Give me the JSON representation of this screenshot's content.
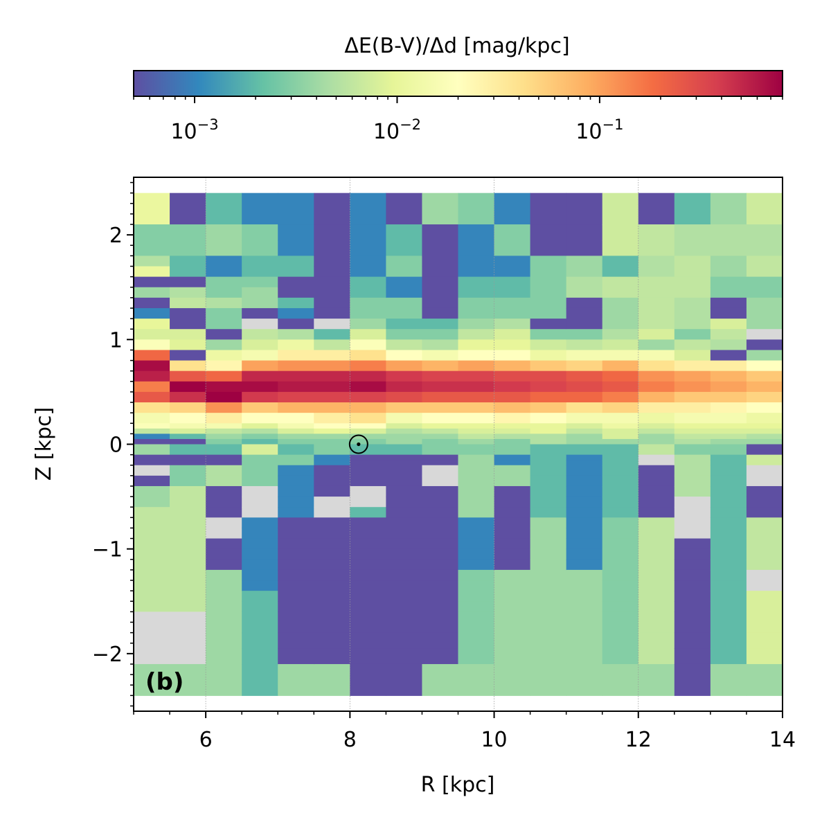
{
  "chart_data": {
    "type": "heatmap",
    "panel_label": "(b)",
    "xlabel": "R  [kpc]",
    "ylabel": "Z  [kpc]",
    "xlim": [
      5,
      14
    ],
    "ylim": [
      -2.55,
      2.55
    ],
    "xticks": [
      6,
      8,
      10,
      12,
      14
    ],
    "xtick_labels": [
      "6",
      "8",
      "10",
      "12",
      "14"
    ],
    "yticks": [
      -2,
      -1,
      0,
      1,
      2
    ],
    "ytick_labels": [
      "−2",
      "−1",
      "0",
      "1",
      "2"
    ],
    "grid": "dotted vertical at major x ticks",
    "colorbar": {
      "label": "ΔE(B-V)/Δd  [mag/kpc]",
      "scale": "log",
      "vmin": 0.0005,
      "vmax": 0.8,
      "colormap": "Spectral_r",
      "tick_values": [
        0.001,
        0.01,
        0.1
      ],
      "tick_bases": [
        "10",
        "10",
        "10"
      ],
      "tick_exponents": [
        "−3",
        "−2",
        "−1"
      ],
      "nan_color": "#d8d8d8"
    },
    "sun_marker": {
      "R": 8.12,
      "Z": 0.0,
      "symbol": "⊙"
    },
    "r_bins": [
      5.0,
      5.5,
      6.0,
      6.5,
      7.0,
      7.5,
      8.0,
      8.5,
      9.0,
      9.5,
      10.0,
      10.5,
      11.0,
      11.5,
      12.0,
      12.5,
      13.0,
      13.5,
      14.0
    ],
    "z_edges": [
      2.4,
      2.1,
      1.95,
      1.8,
      1.7,
      1.6,
      1.5,
      1.4,
      1.3,
      1.2,
      1.1,
      1.0,
      0.9,
      0.8,
      0.7,
      0.6,
      0.5,
      0.4,
      0.3,
      0.2,
      0.15,
      0.1,
      0.05,
      0.0,
      -0.05,
      -0.1,
      -0.15,
      -0.2,
      -0.3,
      -0.4,
      -0.5,
      -0.6,
      -0.7,
      -0.8,
      -0.9,
      -1.0,
      -1.1,
      -1.2,
      -1.3,
      -1.4,
      -1.5,
      -1.6,
      -1.8,
      -1.95,
      -2.1,
      -2.4
    ],
    "value_columns": [
      [
        0.011,
        0.003,
        0.003,
        0.005,
        0.011,
        0.0005,
        0.004,
        0.0005,
        0.001,
        0.01,
        0.008,
        0.018,
        0.2,
        0.7,
        0.55,
        0.15,
        0.25,
        0.04,
        0.015,
        0.018,
        0.006,
        0.001,
        0.0005,
        0.004,
        0.004,
        0.0005,
        0.0005,
        null,
        0.0005,
        0.004,
        0.004,
        0.006,
        0.006,
        0.006,
        0.006,
        0.006,
        0.006,
        0.006,
        0.006,
        0.006,
        0.006,
        null,
        null,
        null,
        0.004
      ],
      [
        0.0005,
        0.003,
        0.003,
        0.002,
        0.002,
        0.0005,
        0.005,
        0.006,
        0.0005,
        0.0005,
        0.008,
        0.009,
        0.0005,
        0.04,
        0.25,
        0.8,
        0.45,
        0.05,
        0.02,
        0.015,
        0.008,
        0.002,
        0.0005,
        0.002,
        0.002,
        0.0005,
        0.0005,
        0.003,
        0.003,
        0.006,
        0.006,
        0.006,
        0.006,
        0.006,
        0.006,
        0.006,
        0.006,
        0.006,
        0.006,
        0.006,
        0.006,
        null,
        null,
        null,
        0.004
      ],
      [
        0.002,
        0.004,
        0.004,
        0.001,
        0.001,
        0.003,
        0.003,
        0.005,
        0.003,
        0.003,
        0.0005,
        0.004,
        0.012,
        0.025,
        0.2,
        0.7,
        0.8,
        0.12,
        0.03,
        0.015,
        0.006,
        0.004,
        0.003,
        0.002,
        0.002,
        0.0005,
        0.0005,
        0.005,
        0.005,
        0.0005,
        0.0005,
        0.0005,
        null,
        null,
        0.0005,
        0.0005,
        0.0005,
        0.004,
        0.004,
        0.004,
        0.004,
        0.004,
        0.004,
        0.004,
        0.004
      ],
      [
        0.001,
        0.003,
        0.003,
        0.002,
        0.002,
        0.003,
        0.004,
        0.004,
        0.0005,
        null,
        0.006,
        0.008,
        0.015,
        0.1,
        0.5,
        0.7,
        0.4,
        0.06,
        0.02,
        0.009,
        0.005,
        0.003,
        0.002,
        0.008,
        0.008,
        0.003,
        0.003,
        0.003,
        0.003,
        null,
        null,
        null,
        0.001,
        0.001,
        0.001,
        0.001,
        0.001,
        0.001,
        0.001,
        0.002,
        0.002,
        0.002,
        0.002,
        0.002,
        0.002
      ],
      [
        0.001,
        0.001,
        0.001,
        0.002,
        0.002,
        0.0005,
        0.0005,
        0.002,
        0.001,
        0.0005,
        0.005,
        0.012,
        0.03,
        0.12,
        0.5,
        0.6,
        0.35,
        0.08,
        0.02,
        0.015,
        0.008,
        0.004,
        0.003,
        0.002,
        0.002,
        0.003,
        0.003,
        0.001,
        0.001,
        0.001,
        0.001,
        0.001,
        0.0005,
        0.0005,
        0.0005,
        0.0005,
        0.0005,
        0.0005,
        0.0005,
        0.0005,
        0.0005,
        0.0005,
        0.0005,
        0.0005,
        0.004
      ],
      [
        0.0005,
        0.0005,
        0.0005,
        0.0005,
        0.0005,
        0.0005,
        0.0005,
        0.0005,
        0.0005,
        null,
        0.002,
        0.006,
        0.03,
        0.12,
        0.5,
        0.6,
        0.35,
        0.08,
        0.03,
        0.02,
        0.01,
        0.004,
        0.003,
        0.003,
        0.003,
        0.001,
        0.001,
        0.0005,
        0.0005,
        0.0005,
        null,
        null,
        0.0005,
        0.0005,
        0.0005,
        0.0005,
        0.0005,
        0.0005,
        0.0005,
        0.0005,
        0.0005,
        0.0005,
        0.0005,
        0.0005,
        0.004
      ],
      [
        0.001,
        0.001,
        0.001,
        0.001,
        0.001,
        0.002,
        0.002,
        0.003,
        0.003,
        0.004,
        0.008,
        0.018,
        0.04,
        0.15,
        0.5,
        0.7,
        0.35,
        0.08,
        0.04,
        0.02,
        0.008,
        0.004,
        0.003,
        0.002,
        0.002,
        0.0005,
        0.0005,
        0.0005,
        0.0005,
        null,
        null,
        0.002,
        0.0005,
        0.0005,
        0.0005,
        0.0005,
        0.0005,
        0.0005,
        0.0005,
        0.0005,
        0.0005,
        0.0005,
        0.0005,
        0.0005,
        0.0005
      ],
      [
        0.0005,
        0.002,
        0.002,
        0.003,
        0.003,
        0.001,
        0.001,
        0.003,
        0.003,
        0.002,
        0.003,
        0.006,
        0.02,
        0.1,
        0.4,
        0.5,
        0.3,
        0.06,
        0.015,
        0.008,
        0.005,
        0.004,
        0.004,
        0.002,
        0.002,
        0.0005,
        0.0005,
        0.0005,
        0.0005,
        0.0005,
        0.0005,
        0.0005,
        0.0005,
        0.0005,
        0.0005,
        0.0005,
        0.0005,
        0.0005,
        0.0005,
        0.0005,
        0.0005,
        0.0005,
        0.0005,
        0.0005,
        0.0005
      ],
      [
        0.004,
        0.0005,
        0.0005,
        0.0005,
        0.0005,
        0.0005,
        0.0005,
        0.0005,
        0.0005,
        0.002,
        0.003,
        0.005,
        0.015,
        0.08,
        0.35,
        0.45,
        0.25,
        0.06,
        0.02,
        0.01,
        0.006,
        0.004,
        0.003,
        0.003,
        0.003,
        0.0005,
        0.0005,
        null,
        null,
        0.0005,
        0.0005,
        0.0005,
        0.0005,
        0.0005,
        0.0005,
        0.0005,
        0.0005,
        0.0005,
        0.0005,
        0.0005,
        0.0005,
        0.0005,
        0.0005,
        0.0005,
        0.004
      ],
      [
        0.003,
        0.001,
        0.001,
        0.001,
        0.001,
        0.002,
        0.002,
        0.003,
        0.003,
        0.004,
        0.006,
        0.01,
        0.02,
        0.1,
        0.35,
        0.45,
        0.25,
        0.06,
        0.02,
        0.01,
        0.008,
        0.006,
        0.004,
        0.003,
        0.003,
        0.004,
        0.004,
        0.004,
        0.004,
        0.004,
        0.004,
        0.004,
        0.001,
        0.001,
        0.001,
        0.001,
        0.001,
        0.003,
        0.003,
        0.003,
        0.003,
        0.003,
        0.003,
        0.003,
        0.004
      ],
      [
        0.001,
        0.003,
        0.003,
        0.001,
        0.001,
        0.002,
        0.002,
        0.003,
        0.003,
        0.005,
        0.008,
        0.01,
        0.02,
        0.08,
        0.3,
        0.4,
        0.25,
        0.07,
        0.025,
        0.01,
        0.008,
        0.005,
        0.003,
        0.003,
        0.003,
        0.001,
        0.001,
        0.004,
        0.004,
        0.0005,
        0.0005,
        0.0005,
        0.0005,
        0.0005,
        0.0005,
        0.0005,
        0.0005,
        0.004,
        0.004,
        0.004,
        0.004,
        0.004,
        0.004,
        0.004,
        0.004
      ],
      [
        0.0005,
        0.0005,
        0.0005,
        0.003,
        0.003,
        0.003,
        0.003,
        0.003,
        0.003,
        0.0005,
        0.003,
        0.007,
        0.012,
        0.06,
        0.3,
        0.35,
        0.2,
        0.06,
        0.02,
        0.01,
        0.01,
        0.005,
        0.005,
        0.002,
        0.002,
        0.002,
        0.002,
        0.002,
        0.002,
        0.002,
        0.002,
        0.002,
        0.004,
        0.004,
        0.004,
        0.004,
        0.004,
        0.004,
        0.004,
        0.004,
        0.004,
        0.004,
        0.004,
        0.004,
        0.004
      ],
      [
        0.0005,
        0.0005,
        0.0005,
        0.004,
        0.004,
        0.005,
        0.005,
        0.0005,
        0.0005,
        0.0005,
        0.003,
        0.006,
        0.015,
        0.05,
        0.25,
        0.3,
        0.2,
        0.04,
        0.015,
        0.008,
        0.006,
        0.004,
        0.004,
        0.002,
        0.002,
        0.001,
        0.001,
        0.001,
        0.001,
        0.001,
        0.001,
        0.001,
        0.001,
        0.001,
        0.001,
        0.001,
        0.001,
        0.004,
        0.004,
        0.004,
        0.004,
        0.004,
        0.004,
        0.004,
        0.004
      ],
      [
        0.007,
        0.007,
        0.007,
        0.002,
        0.002,
        0.006,
        0.006,
        0.004,
        0.004,
        0.004,
        0.005,
        0.007,
        0.015,
        0.08,
        0.2,
        0.25,
        0.15,
        0.05,
        0.015,
        0.012,
        0.008,
        0.008,
        0.004,
        0.002,
        0.002,
        0.002,
        0.002,
        0.002,
        0.002,
        0.002,
        0.002,
        0.002,
        0.003,
        0.003,
        0.003,
        0.003,
        0.003,
        0.003,
        0.003,
        0.003,
        0.003,
        0.003,
        0.003,
        0.003,
        0.004
      ],
      [
        0.0005,
        0.006,
        0.006,
        0.005,
        0.005,
        0.006,
        0.006,
        0.006,
        0.006,
        0.006,
        0.008,
        0.004,
        0.015,
        0.04,
        0.12,
        0.15,
        0.08,
        0.03,
        0.012,
        0.008,
        0.006,
        0.004,
        0.004,
        0.006,
        0.006,
        null,
        null,
        0.0005,
        0.0005,
        0.0005,
        0.0005,
        0.0005,
        0.006,
        0.006,
        0.006,
        0.006,
        0.006,
        0.006,
        0.006,
        0.006,
        0.006,
        0.006,
        0.006,
        0.006,
        0.004
      ],
      [
        0.002,
        0.005,
        0.005,
        0.006,
        0.006,
        0.006,
        0.006,
        0.005,
        0.005,
        0.005,
        0.003,
        0.006,
        0.008,
        0.03,
        0.1,
        0.12,
        0.06,
        0.03,
        0.015,
        0.01,
        0.008,
        0.006,
        0.005,
        0.003,
        0.003,
        0.005,
        0.005,
        0.005,
        0.005,
        0.005,
        null,
        null,
        null,
        null,
        0.0005,
        0.0005,
        0.0005,
        0.0005,
        0.0005,
        0.0005,
        0.0005,
        0.0005,
        0.0005,
        0.0005,
        0.0005
      ],
      [
        0.004,
        0.005,
        0.005,
        0.004,
        0.004,
        0.003,
        0.003,
        0.0005,
        0.0005,
        0.008,
        0.006,
        0.005,
        0.0005,
        0.03,
        0.08,
        0.1,
        0.06,
        0.025,
        0.015,
        0.01,
        0.008,
        0.006,
        0.004,
        0.003,
        0.003,
        0.002,
        0.002,
        0.002,
        0.002,
        0.002,
        0.002,
        0.002,
        0.002,
        0.002,
        0.002,
        0.002,
        0.002,
        0.002,
        0.002,
        0.002,
        0.002,
        0.002,
        0.002,
        0.002,
        0.004
      ],
      [
        0.007,
        0.005,
        0.005,
        0.006,
        0.006,
        0.003,
        0.003,
        0.004,
        0.004,
        0.004,
        null,
        0.0005,
        0.004,
        0.02,
        0.06,
        0.08,
        0.05,
        0.02,
        0.012,
        0.01,
        0.008,
        0.005,
        0.004,
        0.0005,
        0.0005,
        0.007,
        0.007,
        null,
        null,
        0.0005,
        0.0005,
        0.0005,
        0.006,
        0.006,
        0.006,
        0.006,
        0.006,
        null,
        null,
        0.008,
        0.008,
        0.008,
        0.008,
        0.008,
        0.004
      ]
    ]
  }
}
